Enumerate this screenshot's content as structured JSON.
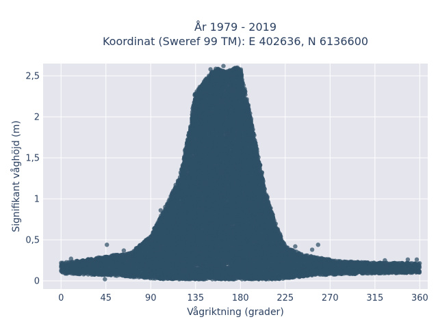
{
  "chart_data": {
    "type": "scatter",
    "title_lines": [
      "År 1979 - 2019",
      "Koordinat (Sweref 99 TM): E 402636, N 6136600"
    ],
    "xlabel": "Vågriktning (grader)",
    "ylabel": "Signifikant våghöjd (m)",
    "xlim": [
      -18,
      368
    ],
    "ylim": [
      -0.1,
      2.65
    ],
    "xticks": [
      0,
      45,
      90,
      135,
      180,
      225,
      270,
      315,
      360
    ],
    "xtick_labels": [
      "0",
      "45",
      "90",
      "135",
      "180",
      "225",
      "270",
      "315",
      "360"
    ],
    "yticks": [
      0,
      0.5,
      1,
      1.5,
      2,
      2.5
    ],
    "ytick_labels": [
      "0",
      "0,5",
      "1",
      "1,5",
      "2",
      "2,5"
    ],
    "grid": true,
    "legend": "none",
    "marker_color": "#2f5167",
    "plot_background": "#e5e5ee",
    "envelope": {
      "direction": [
        0,
        20,
        45,
        70,
        90,
        105,
        120,
        130,
        135,
        145,
        155,
        165,
        175,
        180,
        185,
        195,
        205,
        215,
        225,
        240,
        260,
        280,
        315,
        360
      ],
      "min_height": [
        0.09,
        0.08,
        0.07,
        0.05,
        0.03,
        0.02,
        0.02,
        0.02,
        0.02,
        0.02,
        0.02,
        0.02,
        0.02,
        0.02,
        0.02,
        0.02,
        0.02,
        0.02,
        0.03,
        0.05,
        0.07,
        0.08,
        0.09,
        0.1
      ],
      "max_height": [
        0.22,
        0.25,
        0.3,
        0.34,
        0.55,
        0.9,
        1.3,
        1.9,
        2.3,
        2.45,
        2.6,
        2.55,
        2.6,
        2.58,
        2.3,
        1.7,
        1.1,
        0.7,
        0.42,
        0.33,
        0.28,
        0.24,
        0.22,
        0.22
      ]
    },
    "outlier_points": [
      {
        "x": 46,
        "y": 0.44
      },
      {
        "x": 63,
        "y": 0.37
      },
      {
        "x": 90,
        "y": 0.5
      },
      {
        "x": 235,
        "y": 0.42
      },
      {
        "x": 258,
        "y": 0.44
      },
      {
        "x": 252,
        "y": 0.38
      },
      {
        "x": 44,
        "y": 0.02
      },
      {
        "x": 10,
        "y": 0.27
      },
      {
        "x": 325,
        "y": 0.25
      },
      {
        "x": 348,
        "y": 0.26
      },
      {
        "x": 357,
        "y": 0.26
      },
      {
        "x": 100,
        "y": 0.86
      },
      {
        "x": 163,
        "y": 2.62
      },
      {
        "x": 150,
        "y": 2.58
      },
      {
        "x": 177,
        "y": 2.6
      },
      {
        "x": 155,
        "y": 2.45
      }
    ]
  }
}
